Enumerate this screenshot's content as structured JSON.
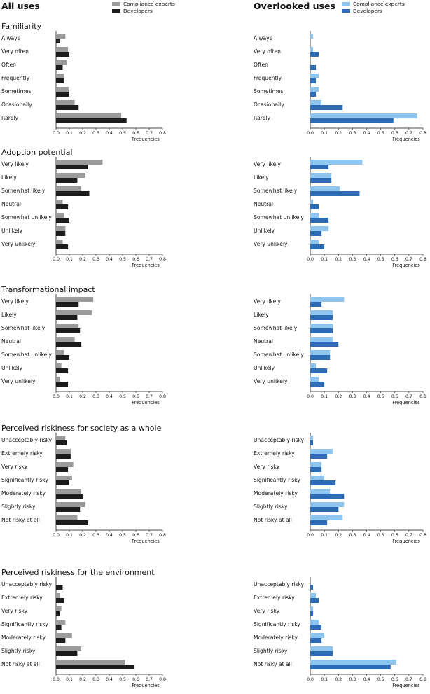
{
  "columns": [
    {
      "title": "All uses",
      "legend": [
        "Compliance experts",
        "Developers"
      ],
      "colors": [
        "#9b9b9b",
        "#1c1c1c"
      ]
    },
    {
      "title": "Overlooked uses",
      "legend": [
        "Compliance experts",
        "Developers"
      ],
      "colors": [
        "#8ec5ee",
        "#2d6bb5"
      ]
    }
  ],
  "x_label": "Frequencies",
  "x_ticks": [
    "0.0",
    "0.1",
    "0.2",
    "0.3",
    "0.4",
    "0.5",
    "0.6",
    "0.7",
    "0.8"
  ],
  "chart_data": [
    {
      "type": "bar",
      "orientation": "horizontal",
      "title": "Familiarity",
      "categories": [
        "Always",
        "Very often",
        "Often",
        "Frequently",
        "Sometimes",
        "Ocasionally",
        "Rarely"
      ],
      "panels": [
        {
          "column": "All uses",
          "xlabel": "Frequencies",
          "xlim": [
            0,
            0.8
          ],
          "series": [
            {
              "name": "Compliance experts",
              "values": [
                0.07,
                0.09,
                0.08,
                0.06,
                0.1,
                0.14,
                0.49
              ]
            },
            {
              "name": "Developers",
              "values": [
                0.03,
                0.1,
                0.05,
                0.06,
                0.1,
                0.17,
                0.53
              ]
            }
          ]
        },
        {
          "column": "Overlooked uses",
          "xlabel": "Frequencies",
          "xlim": [
            0,
            0.8
          ],
          "series": [
            {
              "name": "Compliance experts",
              "values": [
                0.02,
                0.02,
                0.0,
                0.06,
                0.06,
                0.08,
                0.76
              ]
            },
            {
              "name": "Developers",
              "values": [
                0.0,
                0.06,
                0.04,
                0.04,
                0.04,
                0.23,
                0.59
              ]
            }
          ]
        }
      ]
    },
    {
      "type": "bar",
      "orientation": "horizontal",
      "title": "Adoption potential",
      "categories": [
        "Very likely",
        "Likely",
        "Somewhat likely",
        "Neutral",
        "Somewhat unlikely",
        "Unlikely",
        "Very unlikely"
      ],
      "panels": [
        {
          "column": "All uses",
          "xlabel": "Frequencies",
          "xlim": [
            0,
            0.8
          ],
          "series": [
            {
              "name": "Compliance experts",
              "values": [
                0.35,
                0.22,
                0.19,
                0.05,
                0.06,
                0.07,
                0.05
              ]
            },
            {
              "name": "Developers",
              "values": [
                0.24,
                0.16,
                0.25,
                0.09,
                0.1,
                0.07,
                0.09
              ]
            }
          ]
        },
        {
          "column": "Overlooked uses",
          "xlabel": "Frequencies",
          "xlim": [
            0,
            0.8
          ],
          "series": [
            {
              "name": "Compliance experts",
              "values": [
                0.37,
                0.15,
                0.21,
                0.02,
                0.06,
                0.13,
                0.06
              ]
            },
            {
              "name": "Developers",
              "values": [
                0.13,
                0.15,
                0.35,
                0.06,
                0.13,
                0.08,
                0.1
              ]
            }
          ]
        }
      ]
    },
    {
      "type": "bar",
      "orientation": "horizontal",
      "title": "Transformational impact",
      "categories": [
        "Very likely",
        "Likely",
        "Somewhat likely",
        "Neutral",
        "Somewhat unlikely",
        "Unlikely",
        "Very unlikely"
      ],
      "panels": [
        {
          "column": "All uses",
          "xlabel": "Frequencies",
          "xlim": [
            0,
            0.8
          ],
          "series": [
            {
              "name": "Compliance experts",
              "values": [
                0.28,
                0.27,
                0.17,
                0.14,
                0.06,
                0.04,
                0.03
              ]
            },
            {
              "name": "Developers",
              "values": [
                0.17,
                0.16,
                0.18,
                0.19,
                0.1,
                0.09,
                0.09
              ]
            }
          ]
        },
        {
          "column": "Overlooked uses",
          "xlabel": "Frequencies",
          "xlim": [
            0,
            0.8
          ],
          "series": [
            {
              "name": "Compliance experts",
              "values": [
                0.24,
                0.16,
                0.16,
                0.16,
                0.14,
                0.04,
                0.06
              ]
            },
            {
              "name": "Developers",
              "values": [
                0.08,
                0.16,
                0.16,
                0.2,
                0.14,
                0.12,
                0.1
              ]
            }
          ]
        }
      ]
    },
    {
      "type": "bar",
      "orientation": "horizontal",
      "title": "Perceived riskiness for society as a whole",
      "categories": [
        "Unacceptably risky",
        "Extremely risky",
        "Very risky",
        "Significantly risky",
        "Moderately risky",
        "Slightly risky",
        "Not risky at all"
      ],
      "panels": [
        {
          "column": "All uses",
          "xlabel": "Frequencies",
          "xlim": [
            0,
            0.8
          ],
          "series": [
            {
              "name": "Compliance experts",
              "values": [
                0.07,
                0.11,
                0.13,
                0.12,
                0.19,
                0.22,
                0.16
              ]
            },
            {
              "name": "Developers",
              "values": [
                0.08,
                0.11,
                0.09,
                0.1,
                0.2,
                0.18,
                0.24
              ]
            }
          ]
        },
        {
          "column": "Overlooked uses",
          "xlabel": "Frequencies",
          "xlim": [
            0,
            0.8
          ],
          "series": [
            {
              "name": "Compliance experts",
              "values": [
                0.02,
                0.16,
                0.08,
                0.1,
                0.14,
                0.24,
                0.23
              ]
            },
            {
              "name": "Developers",
              "values": [
                0.02,
                0.12,
                0.08,
                0.18,
                0.24,
                0.2,
                0.12
              ]
            }
          ]
        }
      ]
    },
    {
      "type": "bar",
      "orientation": "horizontal",
      "title": "Perceived riskiness for the environment",
      "categories": [
        "Unacceptably risky",
        "Extremely risky",
        "Very risky",
        "Significantly risky",
        "Moderately risky",
        "Slightly risky",
        "Not risky at all"
      ],
      "panels": [
        {
          "column": "All uses",
          "xlabel": "Frequencies",
          "xlim": [
            0,
            0.8
          ],
          "series": [
            {
              "name": "Compliance experts",
              "values": [
                0.0,
                0.03,
                0.04,
                0.07,
                0.12,
                0.19,
                0.52
              ]
            },
            {
              "name": "Developers",
              "values": [
                0.05,
                0.06,
                0.03,
                0.04,
                0.07,
                0.16,
                0.59
              ]
            }
          ]
        },
        {
          "column": "Overlooked uses",
          "xlabel": "Frequencies",
          "xlim": [
            0,
            0.8
          ],
          "series": [
            {
              "name": "Compliance experts",
              "values": [
                0.0,
                0.04,
                0.02,
                0.06,
                0.1,
                0.16,
                0.61
              ]
            },
            {
              "name": "Developers",
              "values": [
                0.02,
                0.06,
                0.02,
                0.08,
                0.08,
                0.16,
                0.57
              ]
            }
          ]
        }
      ]
    }
  ]
}
